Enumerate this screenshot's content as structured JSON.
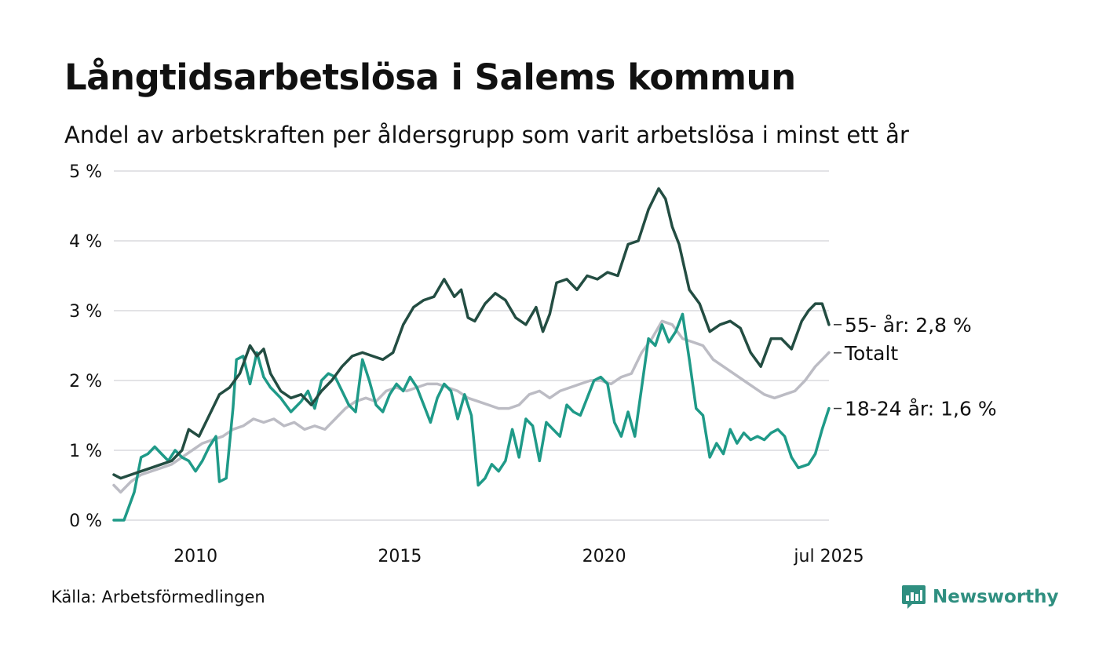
{
  "title": "Långtidsarbetslösa i Salems kommun",
  "subtitle": "Andel av arbetskraften per åldersgrupp som varit arbetslösa i minst ett år",
  "source": "Källa: Arbetsförmedlingen",
  "brand": {
    "name": "Newsworthy",
    "icon": "newsworthy-logo-icon",
    "color": "#2f8f80"
  },
  "chart_data": {
    "type": "line",
    "x_start": "2008-01",
    "x_end": "2025-07",
    "x_ticks": [
      {
        "label": "2010",
        "date": "2010-01"
      },
      {
        "label": "2015",
        "date": "2015-01"
      },
      {
        "label": "2020",
        "date": "2020-01"
      },
      {
        "label": "jul 2025",
        "date": "2025-07"
      }
    ],
    "y_ticks": [
      "0 %",
      "1 %",
      "2 %",
      "3 %",
      "4 %",
      "5 %"
    ],
    "ylim": [
      0,
      5
    ],
    "grid": true,
    "series": [
      {
        "name": "Totalt",
        "label": "Totalt",
        "color": "#bcbcc4",
        "points": [
          [
            "2008-01",
            0.5
          ],
          [
            "2008-03",
            0.4
          ],
          [
            "2008-06",
            0.55
          ],
          [
            "2008-09",
            0.65
          ],
          [
            "2008-12",
            0.7
          ],
          [
            "2009-03",
            0.75
          ],
          [
            "2009-06",
            0.8
          ],
          [
            "2009-09",
            0.9
          ],
          [
            "2009-12",
            1.0
          ],
          [
            "2010-03",
            1.1
          ],
          [
            "2010-06",
            1.15
          ],
          [
            "2010-09",
            1.2
          ],
          [
            "2010-12",
            1.3
          ],
          [
            "2011-03",
            1.35
          ],
          [
            "2011-06",
            1.45
          ],
          [
            "2011-09",
            1.4
          ],
          [
            "2011-12",
            1.45
          ],
          [
            "2012-03",
            1.35
          ],
          [
            "2012-06",
            1.4
          ],
          [
            "2012-09",
            1.3
          ],
          [
            "2012-12",
            1.35
          ],
          [
            "2013-03",
            1.3
          ],
          [
            "2013-06",
            1.45
          ],
          [
            "2013-09",
            1.6
          ],
          [
            "2013-12",
            1.7
          ],
          [
            "2014-03",
            1.75
          ],
          [
            "2014-06",
            1.7
          ],
          [
            "2014-09",
            1.85
          ],
          [
            "2014-12",
            1.9
          ],
          [
            "2015-03",
            1.85
          ],
          [
            "2015-06",
            1.9
          ],
          [
            "2015-09",
            1.95
          ],
          [
            "2015-12",
            1.95
          ],
          [
            "2016-03",
            1.9
          ],
          [
            "2016-06",
            1.85
          ],
          [
            "2016-09",
            1.75
          ],
          [
            "2016-12",
            1.7
          ],
          [
            "2017-03",
            1.65
          ],
          [
            "2017-06",
            1.6
          ],
          [
            "2017-09",
            1.6
          ],
          [
            "2017-12",
            1.65
          ],
          [
            "2018-03",
            1.8
          ],
          [
            "2018-06",
            1.85
          ],
          [
            "2018-09",
            1.75
          ],
          [
            "2018-12",
            1.85
          ],
          [
            "2019-03",
            1.9
          ],
          [
            "2019-06",
            1.95
          ],
          [
            "2019-09",
            2.0
          ],
          [
            "2019-12",
            2.0
          ],
          [
            "2020-03",
            1.95
          ],
          [
            "2020-06",
            2.05
          ],
          [
            "2020-09",
            2.1
          ],
          [
            "2020-12",
            2.4
          ],
          [
            "2021-03",
            2.6
          ],
          [
            "2021-06",
            2.85
          ],
          [
            "2021-09",
            2.8
          ],
          [
            "2021-12",
            2.6
          ],
          [
            "2022-03",
            2.55
          ],
          [
            "2022-06",
            2.5
          ],
          [
            "2022-09",
            2.3
          ],
          [
            "2022-12",
            2.2
          ],
          [
            "2023-03",
            2.1
          ],
          [
            "2023-06",
            2.0
          ],
          [
            "2023-09",
            1.9
          ],
          [
            "2023-12",
            1.8
          ],
          [
            "2024-03",
            1.75
          ],
          [
            "2024-06",
            1.8
          ],
          [
            "2024-09",
            1.85
          ],
          [
            "2024-12",
            2.0
          ],
          [
            "2025-03",
            2.2
          ],
          [
            "2025-05",
            2.3
          ],
          [
            "2025-07",
            2.4
          ]
        ]
      },
      {
        "name": "18-24 år",
        "label": "18-24 år: 1,6 %",
        "color": "#1f9a88",
        "points": [
          [
            "2008-01",
            0.0
          ],
          [
            "2008-04",
            0.0
          ],
          [
            "2008-07",
            0.4
          ],
          [
            "2008-09",
            0.9
          ],
          [
            "2008-11",
            0.95
          ],
          [
            "2009-01",
            1.05
          ],
          [
            "2009-03",
            0.95
          ],
          [
            "2009-05",
            0.85
          ],
          [
            "2009-07",
            1.0
          ],
          [
            "2009-09",
            0.9
          ],
          [
            "2009-11",
            0.85
          ],
          [
            "2010-01",
            0.7
          ],
          [
            "2010-03",
            0.85
          ],
          [
            "2010-05",
            1.05
          ],
          [
            "2010-07",
            1.2
          ],
          [
            "2010-08",
            0.55
          ],
          [
            "2010-10",
            0.6
          ],
          [
            "2010-12",
            1.6
          ],
          [
            "2011-01",
            2.3
          ],
          [
            "2011-03",
            2.35
          ],
          [
            "2011-05",
            1.95
          ],
          [
            "2011-07",
            2.4
          ],
          [
            "2011-09",
            2.05
          ],
          [
            "2011-11",
            1.9
          ],
          [
            "2012-02",
            1.75
          ],
          [
            "2012-05",
            1.55
          ],
          [
            "2012-08",
            1.7
          ],
          [
            "2012-10",
            1.85
          ],
          [
            "2012-12",
            1.6
          ],
          [
            "2013-02",
            2.0
          ],
          [
            "2013-04",
            2.1
          ],
          [
            "2013-06",
            2.05
          ],
          [
            "2013-08",
            1.85
          ],
          [
            "2013-10",
            1.65
          ],
          [
            "2013-12",
            1.55
          ],
          [
            "2014-02",
            2.3
          ],
          [
            "2014-04",
            2.0
          ],
          [
            "2014-06",
            1.65
          ],
          [
            "2014-08",
            1.55
          ],
          [
            "2014-10",
            1.8
          ],
          [
            "2014-12",
            1.95
          ],
          [
            "2015-02",
            1.85
          ],
          [
            "2015-04",
            2.05
          ],
          [
            "2015-06",
            1.9
          ],
          [
            "2015-08",
            1.65
          ],
          [
            "2015-10",
            1.4
          ],
          [
            "2015-12",
            1.75
          ],
          [
            "2016-02",
            1.95
          ],
          [
            "2016-04",
            1.85
          ],
          [
            "2016-06",
            1.45
          ],
          [
            "2016-08",
            1.8
          ],
          [
            "2016-10",
            1.5
          ],
          [
            "2016-12",
            0.5
          ],
          [
            "2017-02",
            0.6
          ],
          [
            "2017-04",
            0.8
          ],
          [
            "2017-06",
            0.7
          ],
          [
            "2017-08",
            0.85
          ],
          [
            "2017-10",
            1.3
          ],
          [
            "2017-12",
            0.9
          ],
          [
            "2018-02",
            1.45
          ],
          [
            "2018-04",
            1.35
          ],
          [
            "2018-06",
            0.85
          ],
          [
            "2018-08",
            1.4
          ],
          [
            "2018-10",
            1.3
          ],
          [
            "2018-12",
            1.2
          ],
          [
            "2019-02",
            1.65
          ],
          [
            "2019-04",
            1.55
          ],
          [
            "2019-06",
            1.5
          ],
          [
            "2019-08",
            1.75
          ],
          [
            "2019-10",
            2.0
          ],
          [
            "2019-12",
            2.05
          ],
          [
            "2020-02",
            1.95
          ],
          [
            "2020-04",
            1.4
          ],
          [
            "2020-06",
            1.2
          ],
          [
            "2020-08",
            1.55
          ],
          [
            "2020-10",
            1.2
          ],
          [
            "2020-12",
            1.9
          ],
          [
            "2021-02",
            2.6
          ],
          [
            "2021-04",
            2.5
          ],
          [
            "2021-06",
            2.8
          ],
          [
            "2021-08",
            2.55
          ],
          [
            "2021-10",
            2.7
          ],
          [
            "2021-12",
            2.95
          ],
          [
            "2022-02",
            2.3
          ],
          [
            "2022-04",
            1.6
          ],
          [
            "2022-06",
            1.5
          ],
          [
            "2022-08",
            0.9
          ],
          [
            "2022-10",
            1.1
          ],
          [
            "2022-12",
            0.95
          ],
          [
            "2023-02",
            1.3
          ],
          [
            "2023-04",
            1.1
          ],
          [
            "2023-06",
            1.25
          ],
          [
            "2023-08",
            1.15
          ],
          [
            "2023-10",
            1.2
          ],
          [
            "2023-12",
            1.15
          ],
          [
            "2024-02",
            1.25
          ],
          [
            "2024-04",
            1.3
          ],
          [
            "2024-06",
            1.2
          ],
          [
            "2024-08",
            0.9
          ],
          [
            "2024-10",
            0.75
          ],
          [
            "2025-01",
            0.8
          ],
          [
            "2025-03",
            0.95
          ],
          [
            "2025-05",
            1.3
          ],
          [
            "2025-07",
            1.6
          ]
        ]
      },
      {
        "name": "55- år",
        "label": "55- år: 2,8 %",
        "color": "#234d42",
        "points": [
          [
            "2008-01",
            0.65
          ],
          [
            "2008-03",
            0.6
          ],
          [
            "2008-06",
            0.65
          ],
          [
            "2008-09",
            0.7
          ],
          [
            "2008-12",
            0.75
          ],
          [
            "2009-03",
            0.8
          ],
          [
            "2009-06",
            0.85
          ],
          [
            "2009-09",
            1.0
          ],
          [
            "2009-11",
            1.3
          ],
          [
            "2010-02",
            1.2
          ],
          [
            "2010-05",
            1.5
          ],
          [
            "2010-08",
            1.8
          ],
          [
            "2010-11",
            1.9
          ],
          [
            "2011-02",
            2.1
          ],
          [
            "2011-05",
            2.5
          ],
          [
            "2011-07",
            2.35
          ],
          [
            "2011-09",
            2.45
          ],
          [
            "2011-11",
            2.1
          ],
          [
            "2012-02",
            1.85
          ],
          [
            "2012-05",
            1.75
          ],
          [
            "2012-08",
            1.8
          ],
          [
            "2012-11",
            1.65
          ],
          [
            "2013-02",
            1.85
          ],
          [
            "2013-05",
            2.0
          ],
          [
            "2013-08",
            2.2
          ],
          [
            "2013-11",
            2.35
          ],
          [
            "2014-02",
            2.4
          ],
          [
            "2014-05",
            2.35
          ],
          [
            "2014-08",
            2.3
          ],
          [
            "2014-11",
            2.4
          ],
          [
            "2015-02",
            2.8
          ],
          [
            "2015-05",
            3.05
          ],
          [
            "2015-08",
            3.15
          ],
          [
            "2015-11",
            3.2
          ],
          [
            "2016-02",
            3.45
          ],
          [
            "2016-05",
            3.2
          ],
          [
            "2016-07",
            3.3
          ],
          [
            "2016-09",
            2.9
          ],
          [
            "2016-11",
            2.85
          ],
          [
            "2017-02",
            3.1
          ],
          [
            "2017-05",
            3.25
          ],
          [
            "2017-08",
            3.15
          ],
          [
            "2017-11",
            2.9
          ],
          [
            "2018-02",
            2.8
          ],
          [
            "2018-05",
            3.05
          ],
          [
            "2018-07",
            2.7
          ],
          [
            "2018-09",
            2.95
          ],
          [
            "2018-11",
            3.4
          ],
          [
            "2019-02",
            3.45
          ],
          [
            "2019-05",
            3.3
          ],
          [
            "2019-08",
            3.5
          ],
          [
            "2019-11",
            3.45
          ],
          [
            "2020-02",
            3.55
          ],
          [
            "2020-05",
            3.5
          ],
          [
            "2020-08",
            3.95
          ],
          [
            "2020-11",
            4.0
          ],
          [
            "2021-02",
            4.45
          ],
          [
            "2021-05",
            4.75
          ],
          [
            "2021-07",
            4.6
          ],
          [
            "2021-09",
            4.2
          ],
          [
            "2021-11",
            3.95
          ],
          [
            "2022-02",
            3.3
          ],
          [
            "2022-05",
            3.1
          ],
          [
            "2022-08",
            2.7
          ],
          [
            "2022-11",
            2.8
          ],
          [
            "2023-02",
            2.85
          ],
          [
            "2023-05",
            2.75
          ],
          [
            "2023-08",
            2.4
          ],
          [
            "2023-11",
            2.2
          ],
          [
            "2024-02",
            2.6
          ],
          [
            "2024-05",
            2.6
          ],
          [
            "2024-08",
            2.45
          ],
          [
            "2024-11",
            2.85
          ],
          [
            "2025-01",
            3.0
          ],
          [
            "2025-03",
            3.1
          ],
          [
            "2025-05",
            3.1
          ],
          [
            "2025-07",
            2.8
          ]
        ]
      }
    ]
  }
}
